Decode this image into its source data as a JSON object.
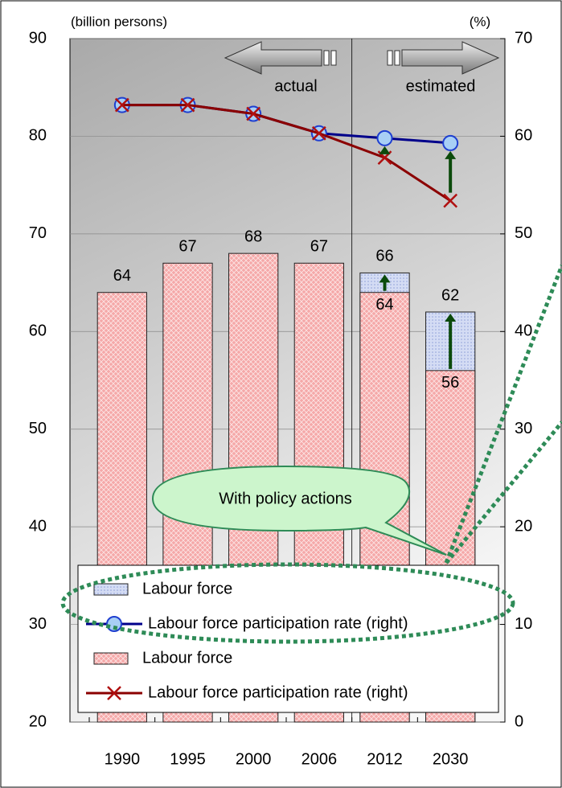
{
  "chart_data": {
    "type": "bar",
    "y_label": "(billion persons)",
    "y2_label": "(%)",
    "annotations": [
      "actual",
      "estimated",
      "With policy actions"
    ],
    "categories": [
      "1990",
      "1995",
      "2000",
      "2006",
      "2012",
      "2030"
    ],
    "series": [
      {
        "name": "Labour force",
        "type": "bar",
        "color": "#d4dcf4",
        "values": [
          null,
          null,
          null,
          null,
          66,
          62
        ]
      },
      {
        "name": "Labour force participation rate (right)",
        "type": "line",
        "axis": "y2",
        "color": "#00008b",
        "values": [
          63.2,
          63.2,
          62.3,
          60.3,
          59.8,
          59.3
        ]
      },
      {
        "name": "Labour force",
        "type": "bar",
        "color": "#f5a8a8",
        "values": [
          64,
          67,
          68,
          67,
          64,
          56
        ]
      },
      {
        "name": "Labour force participation rate (right)",
        "type": "line",
        "axis": "y2",
        "color": "#8b0000",
        "values": [
          63.2,
          63.2,
          62.3,
          60.3,
          57.8,
          53.4
        ]
      }
    ],
    "ylim": [
      20,
      90
    ],
    "yticks": [
      20,
      30,
      40,
      50,
      60,
      70,
      80,
      90
    ],
    "y2lim": [
      0,
      70
    ],
    "y2ticks": [
      0,
      10,
      20,
      30,
      40,
      50,
      60,
      70
    ],
    "grid": true,
    "legend": "bottom-left"
  }
}
